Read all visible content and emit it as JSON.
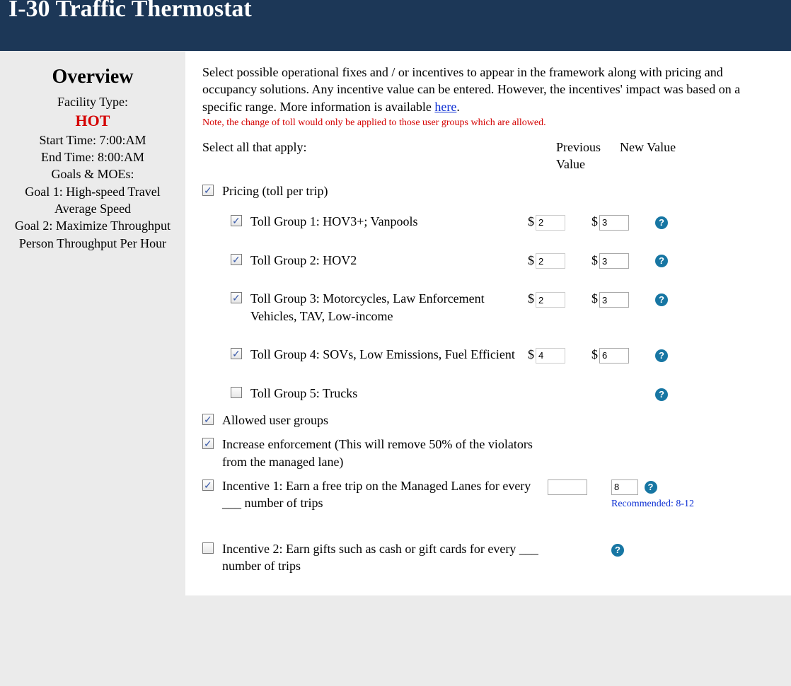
{
  "header": {
    "title": "I-30 Traffic Thermostat"
  },
  "sidebar": {
    "heading": "Overview",
    "facility_type_label": "Facility Type:",
    "facility_type_value": "HOT",
    "start_time": "Start Time: 7:00:AM",
    "end_time": "End Time: 8:00:AM",
    "goals_label": "Goals & MOEs:",
    "goal1": "Goal 1: High-speed Travel",
    "goal1_moe": "Average Speed",
    "goal2": "Goal 2: Maximize Throughput",
    "goal2_moe": "Person Throughput Per Hour"
  },
  "main": {
    "intro": "Select possible operational fixes and / or incentives to appear in the framework along with pricing and occupancy solutions. Any incentive value can be entered. However, the incentives' impact was based on a specific range. More information is available ",
    "intro_link": "here",
    "intro_after": ".",
    "note": "Note, the change of toll would only be applied to those user groups which are allowed.",
    "select_all": "Select all that apply:",
    "col_prev": "Previous Value",
    "col_new": "New Value",
    "pricing_label": "Pricing (toll per trip)",
    "groups": [
      {
        "checked": true,
        "label": "Toll Group 1: HOV3+; Vanpools",
        "prev": "2",
        "new": "3",
        "help": true
      },
      {
        "checked": true,
        "label": "Toll Group 2: HOV2",
        "prev": "2",
        "new": "3",
        "help": true
      },
      {
        "checked": true,
        "label": "Toll Group 3: Motorcycles, Law Enforcement Vehicles, TAV, Low-income",
        "prev": "2",
        "new": "3",
        "help": true
      },
      {
        "checked": true,
        "label": "Toll Group 4: SOVs, Low Emissions, Fuel Efficient",
        "prev": "4",
        "new": "6",
        "help": true
      },
      {
        "checked": false,
        "label": "Toll Group 5: Trucks",
        "prev": "",
        "new": "",
        "help": true
      }
    ],
    "allowed_label": "Allowed user groups",
    "enforce_label": "Increase enforcement (This will remove 50% of the violators from the managed lane)",
    "incentive1_label": "Incentive 1: Earn a free trip on the Managed Lanes for every ___ number of trips",
    "incentive1_new": "8",
    "incentive1_reco": "Recommended: 8-12",
    "incentive2_label": "Incentive 2: Earn gifts such as cash or gift cards for every ___ number of trips"
  }
}
